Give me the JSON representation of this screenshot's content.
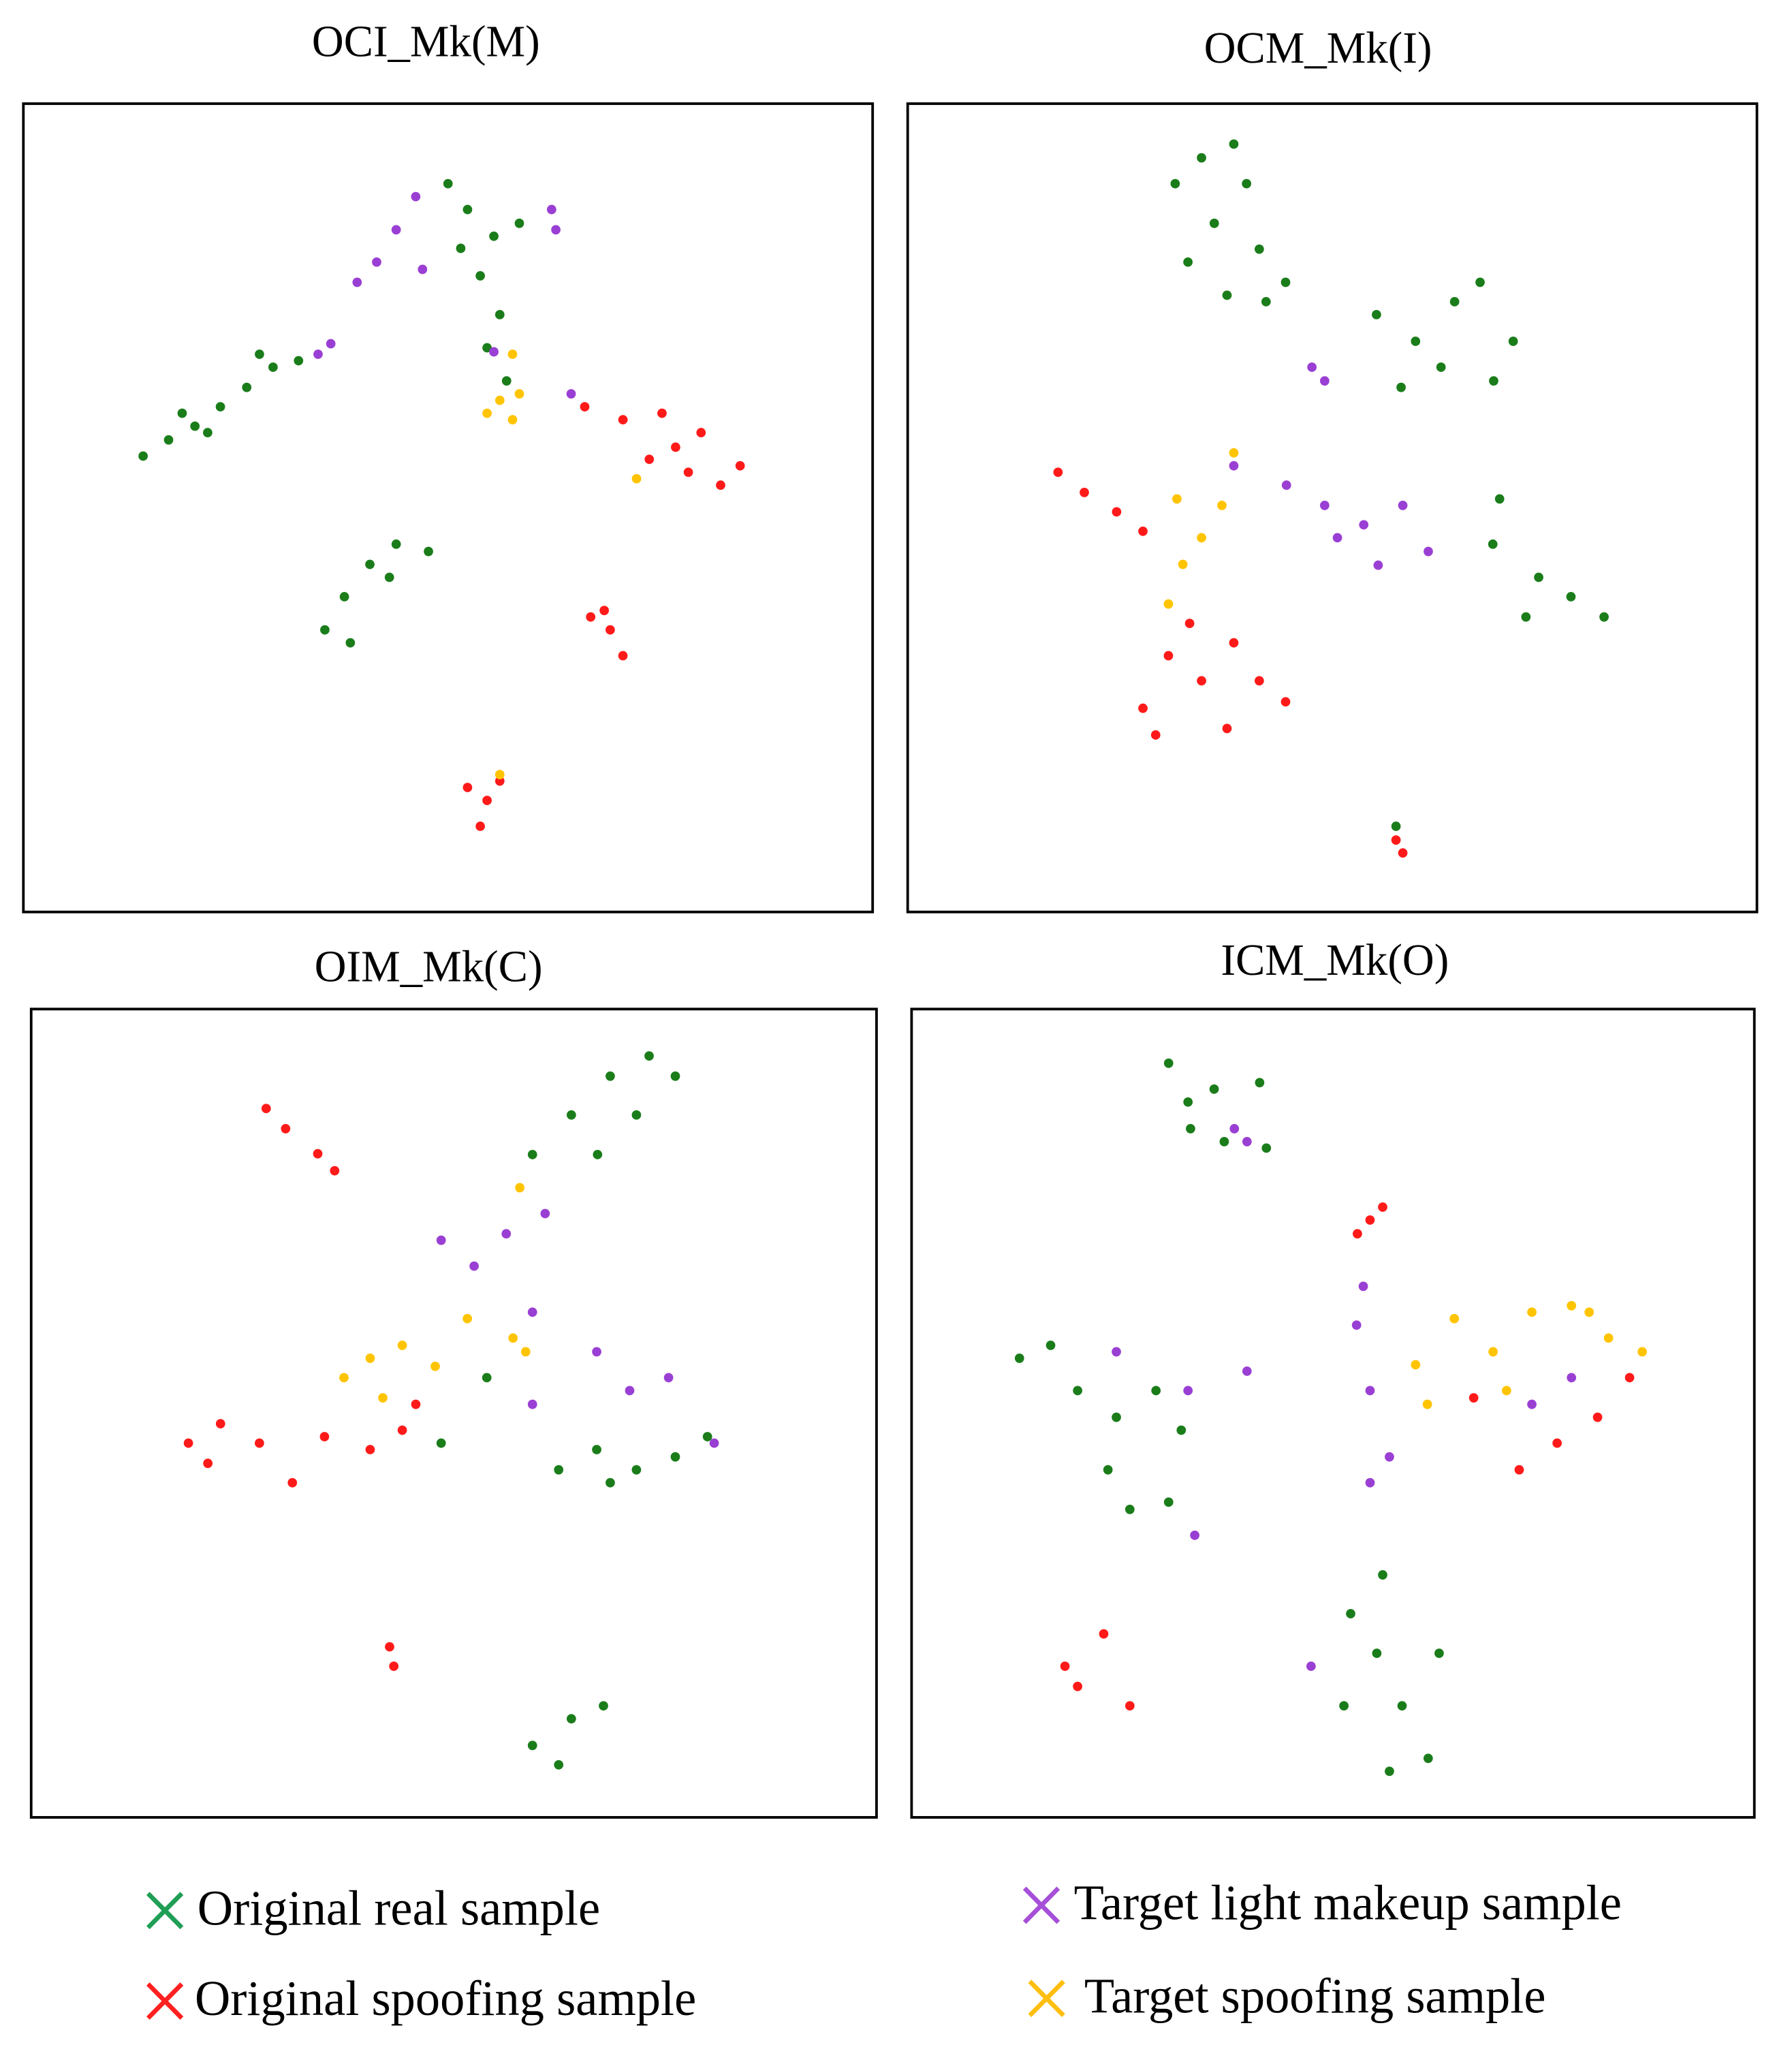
{
  "chart_data": [
    {
      "type": "scatter",
      "title": "OCI_Mk(M)",
      "xlim": [
        0,
        100
      ],
      "ylim": [
        0,
        100
      ],
      "series": [
        {
          "color": "#1a7d1a",
          "x": [
            14.1,
            17.1,
            20.2,
            23.2,
            26.3,
            29.4,
            32.4,
            21.7,
            27.8,
            18.7,
            50.0,
            52.3,
            55.4,
            58.4,
            53.8,
            56.1,
            54.6,
            56.9,
            51.5,
            35.5,
            37.8,
            40.8,
            43.9,
            47.7,
            38.5,
            43.1
          ],
          "y": [
            56.4,
            58.4,
            60.1,
            62.5,
            64.9,
            67.4,
            68.2,
            59.3,
            69.0,
            61.7,
            90.1,
            86.9,
            83.6,
            85.2,
            78.7,
            73.9,
            69.8,
            65.7,
            82.1,
            34.9,
            39.0,
            43.0,
            45.5,
            44.6,
            33.3,
            41.4
          ]
        },
        {
          "color": "#ff1a1a",
          "x": [
            66.1,
            70.6,
            75.2,
            79.8,
            84.4,
            73.7,
            78.3,
            82.1,
            76.8,
            66.8,
            69.1,
            70.6,
            68.4,
            52.3,
            54.6,
            53.8,
            56.1
          ],
          "y": [
            62.5,
            60.9,
            61.7,
            59.3,
            55.2,
            56.0,
            54.4,
            52.8,
            57.5,
            36.5,
            34.9,
            31.7,
            37.3,
            15.4,
            13.8,
            10.6,
            16.2
          ]
        },
        {
          "color": "#9a3fd4",
          "x": [
            39.3,
            41.6,
            43.9,
            46.2,
            47.0,
            34.7,
            36.2,
            62.7,
            62.2,
            55.4,
            64.5
          ],
          "y": [
            77.9,
            80.4,
            84.4,
            88.5,
            79.5,
            69.0,
            70.3,
            84.4,
            86.9,
            69.3,
            64.1
          ]
        },
        {
          "color": "#ffc400",
          "x": [
            56.1,
            58.4,
            57.6,
            54.6,
            57.6,
            72.2,
            56.1
          ],
          "y": [
            63.3,
            64.1,
            60.9,
            61.7,
            69.0,
            53.6,
            17.0
          ]
        }
      ]
    },
    {
      "type": "scatter",
      "title": "OCM_Mk(I)",
      "xlim": [
        0,
        100
      ],
      "ylim": [
        0,
        100
      ],
      "series": [
        {
          "color": "#1a7d1a",
          "x": [
            31.5,
            34.6,
            38.4,
            39.9,
            36.1,
            41.4,
            33.0,
            37.6,
            42.2,
            44.5,
            55.2,
            59.8,
            64.4,
            67.4,
            71.3,
            58.1,
            62.8,
            69.0,
            69.7,
            68.9,
            74.3,
            78.1,
            82.0,
            72.8,
            57.5
          ],
          "y": [
            90.1,
            93.3,
            95.0,
            90.1,
            85.2,
            82.0,
            80.4,
            76.3,
            75.5,
            77.9,
            73.9,
            70.6,
            75.5,
            77.9,
            70.6,
            64.9,
            67.4,
            65.7,
            51.1,
            45.5,
            41.4,
            39.0,
            36.5,
            36.5,
            10.6
          ]
        },
        {
          "color": "#ff1a1a",
          "x": [
            17.7,
            20.8,
            24.6,
            27.7,
            27.7,
            30.7,
            34.6,
            38.4,
            41.4,
            37.6,
            29.2,
            44.5,
            33.2,
            58.3,
            57.5
          ],
          "y": [
            54.4,
            51.9,
            49.5,
            47.1,
            25.2,
            31.7,
            28.6,
            33.3,
            28.6,
            22.7,
            21.9,
            26.0,
            35.7,
            7.3,
            8.9
          ]
        },
        {
          "color": "#9a3fd4",
          "x": [
            38.4,
            44.6,
            49.1,
            53.7,
            58.3,
            61.3,
            55.4,
            50.6,
            47.6,
            49.1
          ],
          "y": [
            55.2,
            52.8,
            50.3,
            47.9,
            50.3,
            44.6,
            42.9,
            46.3,
            67.4,
            65.7
          ]
        },
        {
          "color": "#ffc400",
          "x": [
            31.7,
            34.6,
            37.0,
            38.4,
            32.4,
            30.7
          ],
          "y": [
            51.1,
            46.3,
            50.3,
            56.8,
            43.0,
            38.1
          ]
        }
      ]
    },
    {
      "type": "scatter",
      "title": "OIM_Mk(C)",
      "xlim": [
        0,
        100
      ],
      "ylim": [
        0,
        100
      ],
      "series": [
        {
          "color": "#1a7d1a",
          "x": [
            59.3,
            63.9,
            68.5,
            73.1,
            76.2,
            67.0,
            71.6,
            62.4,
            66.9,
            71.6,
            76.2,
            80.0,
            68.5,
            59.3,
            63.9,
            67.7,
            62.4,
            48.5,
            53.9
          ],
          "y": [
            82.0,
            86.9,
            91.7,
            94.2,
            91.7,
            82.0,
            86.9,
            43.0,
            45.5,
            43.0,
            44.6,
            47.1,
            41.4,
            8.9,
            12.2,
            13.8,
            6.5,
            46.3,
            54.4
          ]
        },
        {
          "color": "#ff1a1a",
          "x": [
            27.8,
            30.1,
            33.9,
            35.9,
            18.6,
            22.4,
            27.0,
            30.9,
            34.7,
            40.1,
            43.9,
            45.5,
            20.9,
            42.4,
            42.9
          ],
          "y": [
            87.7,
            85.2,
            82.1,
            80.0,
            46.3,
            48.7,
            46.3,
            41.4,
            47.1,
            45.5,
            47.9,
            51.1,
            43.8,
            21.1,
            18.7
          ]
        },
        {
          "color": "#9a3fd4",
          "x": [
            48.5,
            52.4,
            56.2,
            60.8,
            59.3,
            66.9,
            70.8,
            59.3,
            75.4,
            80.8
          ],
          "y": [
            71.4,
            68.2,
            72.2,
            74.7,
            62.5,
            57.6,
            52.8,
            51.1,
            54.4,
            46.3
          ]
        },
        {
          "color": "#ffc400",
          "x": [
            37.0,
            40.1,
            43.9,
            47.8,
            41.6,
            57.0,
            58.5,
            57.8,
            51.6
          ],
          "y": [
            54.4,
            56.8,
            58.4,
            55.8,
            51.9,
            59.3,
            57.6,
            77.9,
            61.7
          ]
        }
      ]
    },
    {
      "type": "scatter",
      "title": "ICM_Mk(O)",
      "xlim": [
        0,
        100
      ],
      "ylim": [
        0,
        100
      ],
      "series": [
        {
          "color": "#1a7d1a",
          "x": [
            30.5,
            32.8,
            35.9,
            33.1,
            37.1,
            41.3,
            42.1,
            12.8,
            16.5,
            19.7,
            24.3,
            29.0,
            23.3,
            25.9,
            30.5,
            32.0,
            52.1,
            55.9,
            55.2,
            58.2,
            61.3,
            51.3,
            62.6,
            56.7
          ],
          "y": [
            93.3,
            88.5,
            90.1,
            85.2,
            83.6,
            90.9,
            82.8,
            56.8,
            58.4,
            52.8,
            49.5,
            52.8,
            43.0,
            38.1,
            39.0,
            47.9,
            25.2,
            30.0,
            20.3,
            13.8,
            7.3,
            13.8,
            20.3,
            5.7
          ]
        },
        {
          "color": "#ff1a1a",
          "x": [
            54.4,
            55.9,
            52.9,
            72.1,
            76.6,
            81.4,
            85.2,
            66.7,
            18.2,
            22.8,
            19.7,
            25.9
          ],
          "y": [
            73.9,
            75.5,
            72.2,
            43.0,
            46.3,
            49.5,
            54.4,
            51.9,
            18.7,
            22.7,
            16.2,
            13.8
          ]
        },
        {
          "color": "#9a3fd4",
          "x": [
            39.8,
            38.3,
            24.3,
            32.8,
            39.8,
            33.6,
            52.8,
            53.6,
            54.4,
            56.7,
            54.4,
            73.6,
            78.3,
            47.4
          ],
          "y": [
            83.6,
            85.2,
            57.6,
            52.8,
            55.2,
            34.9,
            60.9,
            65.7,
            52.8,
            44.6,
            41.4,
            51.1,
            54.4,
            18.7
          ]
        },
        {
          "color": "#ffc400",
          "x": [
            59.8,
            64.4,
            69.0,
            73.6,
            78.3,
            82.7,
            80.4,
            61.2,
            70.6,
            86.7
          ],
          "y": [
            56.0,
            61.7,
            57.6,
            62.5,
            63.3,
            59.3,
            62.5,
            51.1,
            52.8,
            57.6
          ]
        }
      ]
    }
  ],
  "legend": [
    {
      "name": "Original real sample",
      "color": "#1f9e55"
    },
    {
      "name": "Original spoofing sample",
      "color": "#ff2020"
    },
    {
      "name": "Target light makeup sample",
      "color": "#a64fd8"
    },
    {
      "name": "Target spoofing sample",
      "color": "#ffbe10"
    }
  ]
}
